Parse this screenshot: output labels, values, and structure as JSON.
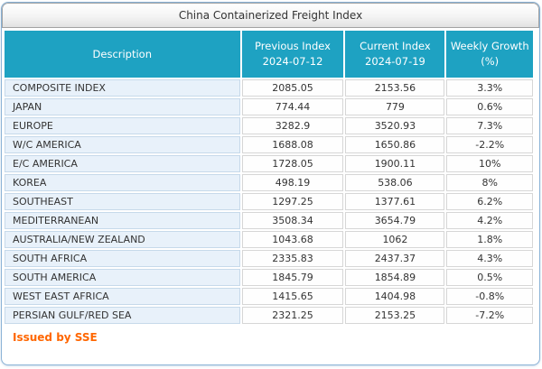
{
  "title": "China Containerized Freight Index",
  "colors": {
    "header_teal": "#1ea2c2",
    "description_cell_bg": "#e8f1fa",
    "panel_border_blue": "#8ab2d6",
    "footer_orange": "#ff6600",
    "body_text": "#333333"
  },
  "table": {
    "columns": [
      {
        "line1": "Description",
        "line2": ""
      },
      {
        "line1": "Previous Index",
        "line2": "2024-07-12"
      },
      {
        "line1": "Current Index",
        "line2": "2024-07-19"
      },
      {
        "line1": "Weekly Growth",
        "line2": "(%)"
      }
    ],
    "rows": [
      {
        "description": "COMPOSITE INDEX",
        "previous": "2085.05",
        "current": "2153.56",
        "growth": "3.3%"
      },
      {
        "description": "JAPAN",
        "previous": "774.44",
        "current": "779",
        "growth": "0.6%"
      },
      {
        "description": "EUROPE",
        "previous": "3282.9",
        "current": "3520.93",
        "growth": "7.3%"
      },
      {
        "description": "W/C AMERICA",
        "previous": "1688.08",
        "current": "1650.86",
        "growth": "-2.2%"
      },
      {
        "description": "E/C AMERICA",
        "previous": "1728.05",
        "current": "1900.11",
        "growth": "10%"
      },
      {
        "description": "KOREA",
        "previous": "498.19",
        "current": "538.06",
        "growth": "8%"
      },
      {
        "description": "SOUTHEAST",
        "previous": "1297.25",
        "current": "1377.61",
        "growth": "6.2%"
      },
      {
        "description": "MEDITERRANEAN",
        "previous": "3508.34",
        "current": "3654.79",
        "growth": "4.2%"
      },
      {
        "description": "AUSTRALIA/NEW ZEALAND",
        "previous": "1043.68",
        "current": "1062",
        "growth": "1.8%"
      },
      {
        "description": "SOUTH AFRICA",
        "previous": "2335.83",
        "current": "2437.37",
        "growth": "4.3%"
      },
      {
        "description": "SOUTH AMERICA",
        "previous": "1845.79",
        "current": "1854.89",
        "growth": "0.5%"
      },
      {
        "description": "WEST EAST AFRICA",
        "previous": "1415.65",
        "current": "1404.98",
        "growth": "-0.8%"
      },
      {
        "description": "PERSIAN GULF/RED SEA",
        "previous": "2321.25",
        "current": "2153.25",
        "growth": "-7.2%"
      }
    ]
  },
  "footer": {
    "text": "Issued by SSE"
  }
}
